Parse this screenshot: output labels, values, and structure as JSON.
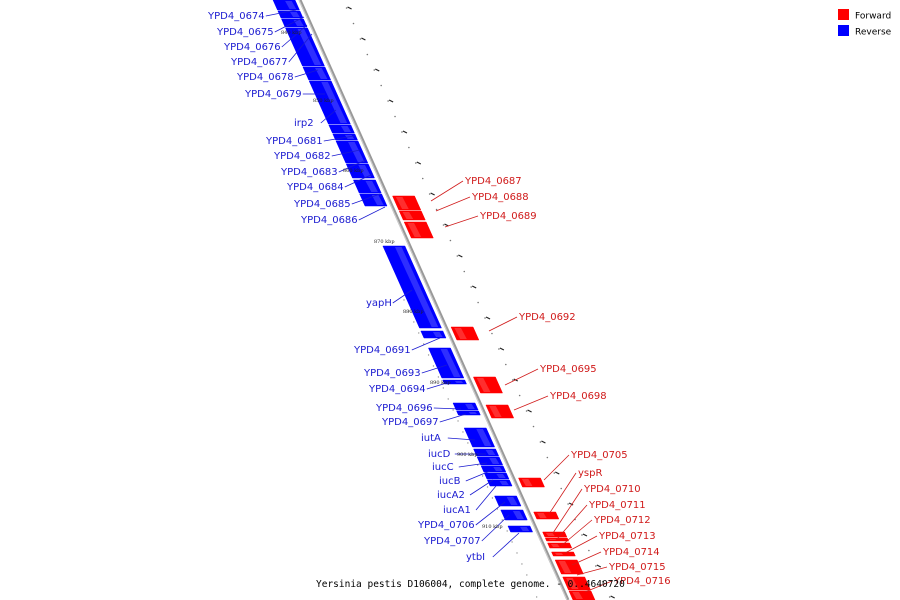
{
  "colors": {
    "forward": "#ff0000",
    "reverse": "#0000ff",
    "backbone": "#999999",
    "label_forward": "#d01a1a",
    "label_reverse": "#1a1ad0"
  },
  "legend": {
    "forward": "Forward",
    "reverse": "Reverse"
  },
  "caption": "Yersinia pestis D106004, complete genome. - 0..4640720",
  "tick_labels": [
    "840 kbp",
    "850 kbp",
    "860 kbp",
    "870 kbp",
    "880 kbp",
    "890 kbp",
    "900 kbp",
    "910 kbp"
  ],
  "reverse_genes": [
    "YPD4_0674",
    "YPD4_0675",
    "YPD4_0676",
    "YPD4_0677",
    "YPD4_0678",
    "YPD4_0679",
    "irp2",
    "YPD4_0681",
    "YPD4_0682",
    "YPD4_0683",
    "YPD4_0684",
    "YPD4_0685",
    "YPD4_0686",
    "yapH",
    "YPD4_0691",
    "YPD4_0693",
    "YPD4_0694",
    "YPD4_0696",
    "YPD4_0697",
    "iutA",
    "iucD",
    "iucC",
    "iucB",
    "iucA2",
    "iucA1",
    "YPD4_0706",
    "YPD4_0707",
    "ytbI"
  ],
  "forward_genes": [
    "YPD4_0687",
    "YPD4_0688",
    "YPD4_0689",
    "YPD4_0692",
    "YPD4_0695",
    "YPD4_0698",
    "YPD4_0705",
    "yspR",
    "YPD4_0710",
    "YPD4_0711",
    "YPD4_0712",
    "YPD4_0713",
    "YPD4_0714",
    "YPD4_0715",
    "YPD4_0716"
  ]
}
